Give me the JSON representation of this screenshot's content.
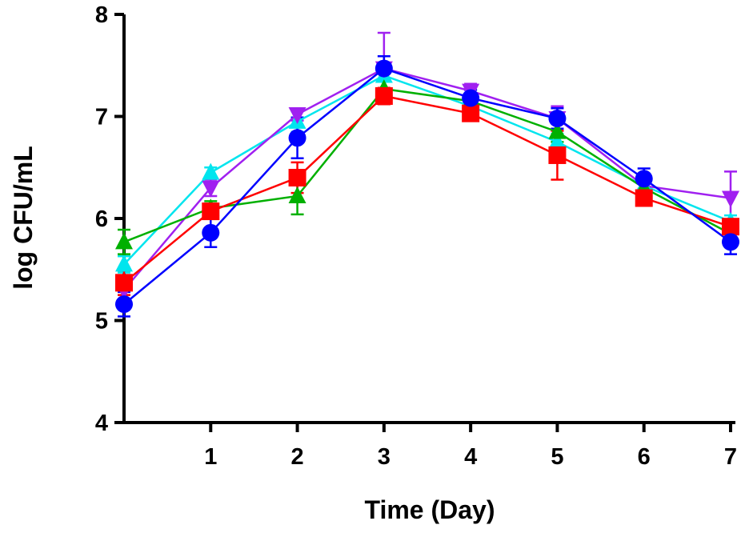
{
  "chart_data": {
    "type": "line",
    "title": "",
    "xlabel": "Time (Day)",
    "ylabel": "log CFU/mL",
    "xlim": [
      0,
      7
    ],
    "ylim": [
      4,
      8
    ],
    "x_ticks": [
      1,
      2,
      3,
      4,
      5,
      6,
      7
    ],
    "y_ticks": [
      4,
      5,
      6,
      7,
      8
    ],
    "grid": false,
    "legend": "none",
    "x": [
      0,
      1,
      2,
      3,
      4,
      5,
      6,
      7
    ],
    "series": [
      {
        "color": "#00e5ee",
        "marker": "triangle-up",
        "values": [
          5.55,
          6.45,
          6.95,
          7.4,
          7.1,
          6.75,
          6.32,
          5.97
        ],
        "errors": [
          0.08,
          0.05,
          0.1,
          0.12,
          0.06,
          0.08,
          0.06,
          0.06
        ]
      },
      {
        "color": "#a020f0",
        "marker": "triangle-down",
        "values": [
          5.3,
          6.3,
          7.02,
          7.47,
          7.25,
          6.98,
          6.32,
          6.2
        ],
        "errors": [
          0.1,
          0.08,
          0.06,
          0.35,
          0.07,
          0.12,
          0.1,
          0.26
        ]
      },
      {
        "color": "#00b000",
        "marker": "triangle-up",
        "values": [
          5.77,
          6.1,
          6.22,
          7.27,
          7.15,
          6.85,
          6.3,
          5.85
        ],
        "errors": [
          0.12,
          0.07,
          0.18,
          0.1,
          0.06,
          0.1,
          0.06,
          0.08
        ]
      },
      {
        "color": "#ff0000",
        "marker": "square",
        "values": [
          5.37,
          6.07,
          6.4,
          7.2,
          7.03,
          6.62,
          6.2,
          5.92
        ],
        "errors": [
          0.12,
          0.06,
          0.15,
          0.08,
          0.05,
          0.24,
          0.06,
          0.07
        ]
      },
      {
        "color": "#0000ff",
        "marker": "circle",
        "values": [
          5.16,
          5.86,
          6.79,
          7.47,
          7.18,
          6.98,
          6.39,
          5.77
        ],
        "errors": [
          0.12,
          0.14,
          0.2,
          0.12,
          0.08,
          0.1,
          0.1,
          0.12
        ]
      }
    ]
  }
}
